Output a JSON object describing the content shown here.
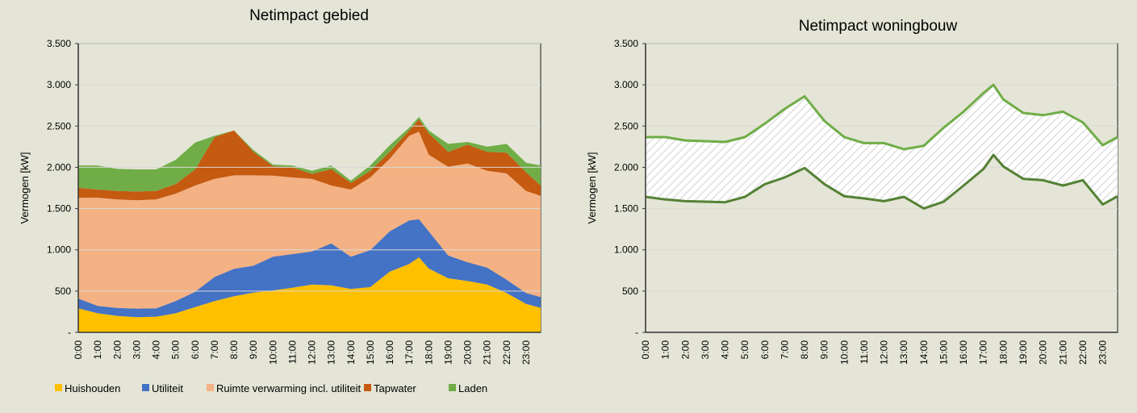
{
  "chart_data": [
    {
      "type": "area",
      "stacked": true,
      "title": "Netimpact gebied",
      "xlabel": "",
      "ylabel": "Vermogen [kW]",
      "ylim": [
        0,
        3500
      ],
      "yticks": [
        "-",
        "500",
        "1.000",
        "1.500",
        "2.000",
        "2.500",
        "3.000",
        "3.500"
      ],
      "xtick_labels": [
        "0:00",
        "1:00",
        "2:00",
        "3:00",
        "4:00",
        "5:00",
        "6:00",
        "7:00",
        "8:00",
        "9:00",
        "10:00",
        "11:00",
        "12:00",
        "13:00",
        "14:00",
        "15:00",
        "16:00",
        "17:00",
        "18:00",
        "19:00",
        "20:00",
        "21:00",
        "22:00",
        "23:00"
      ],
      "x": [
        "0:00",
        "1:00",
        "2:00",
        "3:00",
        "4:00",
        "5:00",
        "6:00",
        "7:00",
        "8:00",
        "9:00",
        "10:00",
        "11:00",
        "12:00",
        "13:00",
        "14:00",
        "15:00",
        "16:00",
        "17:00",
        "17:30",
        "18:00",
        "19:00",
        "20:00",
        "21:00",
        "22:00",
        "23:00",
        "23:45"
      ],
      "grid": true,
      "legend": "bottom",
      "series": [
        {
          "name": "Huishouden",
          "color": "#FFC000",
          "values": [
            290,
            231,
            199,
            183,
            190,
            231,
            306,
            378,
            437,
            482,
            508,
            541,
            580,
            570,
            525,
            548,
            736,
            828,
            909,
            773,
            655,
            622,
            580,
            476,
            345,
            297
          ]
        },
        {
          "name": "Utiliteit",
          "color": "#4472C4",
          "values": [
            120,
            89,
            97,
            104,
            100,
            147,
            186,
            293,
            332,
            326,
            408,
            407,
            400,
            508,
            391,
            449,
            489,
            528,
            463,
            452,
            277,
            228,
            205,
            162,
            131,
            130
          ]
        },
        {
          "name": "Ruimte verwarming incl. utiliteit",
          "color": "#F4B183",
          "values": [
            1222,
            1312,
            1314,
            1313,
            1320,
            1303,
            1287,
            1189,
            1134,
            1095,
            984,
            929,
            880,
            701,
            814,
            880,
            880,
            1026,
            1059,
            928,
            1075,
            1196,
            1173,
            1288,
            1238,
            1228
          ]
        },
        {
          "name": "Tapwater",
          "color": "#C55A11",
          "values": [
            121,
            98,
            104,
            107,
            104,
            115,
            196,
            506,
            544,
            284,
            114,
            123,
            60,
            200,
            81,
            81,
            82,
            65,
            147,
            261,
            180,
            229,
            229,
            251,
            228,
            124
          ]
        },
        {
          "name": "Laden",
          "color": "#70AD47",
          "values": [
            270,
            293,
            267,
            268,
            261,
            293,
            325,
            16,
            0,
            22,
            19,
            23,
            38,
            44,
            27,
            65,
            81,
            33,
            32,
            33,
            97,
            32,
            64,
            107,
            114,
            244
          ]
        }
      ]
    },
    {
      "type": "line",
      "title": "Netimpact woningbouw",
      "xlabel": "",
      "ylabel": "Vermogen [kW]",
      "ylim": [
        0,
        3500
      ],
      "yticks": [
        "-",
        "500",
        "1.000",
        "1.500",
        "2.000",
        "2.500",
        "3.000",
        "3.500"
      ],
      "xtick_labels": [
        "0:00",
        "1:00",
        "2:00",
        "3:00",
        "4:00",
        "5:00",
        "6:00",
        "7:00",
        "8:00",
        "9:00",
        "10:00",
        "11:00",
        "12:00",
        "13:00",
        "14:00",
        "15:00",
        "16:00",
        "17:00",
        "18:00",
        "19:00",
        "20:00",
        "21:00",
        "22:00",
        "23:00"
      ],
      "x": [
        "0:00",
        "1:00",
        "2:00",
        "3:00",
        "4:00",
        "5:00",
        "6:00",
        "7:00",
        "8:00",
        "9:00",
        "10:00",
        "11:00",
        "12:00",
        "13:00",
        "14:00",
        "15:00",
        "16:00",
        "17:00",
        "17:30",
        "18:00",
        "19:00",
        "20:00",
        "21:00",
        "22:00",
        "23:00",
        "23:45"
      ],
      "grid": true,
      "band_fill": "hatched",
      "series": [
        {
          "color": "#70AD47",
          "values": [
            2366,
            2366,
            2326,
            2317,
            2307,
            2366,
            2529,
            2708,
            2861,
            2561,
            2366,
            2294,
            2294,
            2219,
            2261,
            2480,
            2675,
            2900,
            3000,
            2822,
            2659,
            2632,
            2675,
            2545,
            2268,
            2366
          ]
        },
        {
          "color": "#548235",
          "values": [
            1642,
            1610,
            1590,
            1584,
            1577,
            1642,
            1796,
            1877,
            1991,
            1796,
            1649,
            1623,
            1590,
            1642,
            1502,
            1584,
            1779,
            1980,
            2150,
            2010,
            1860,
            1844,
            1779,
            1844,
            1551,
            1649
          ]
        }
      ]
    }
  ]
}
